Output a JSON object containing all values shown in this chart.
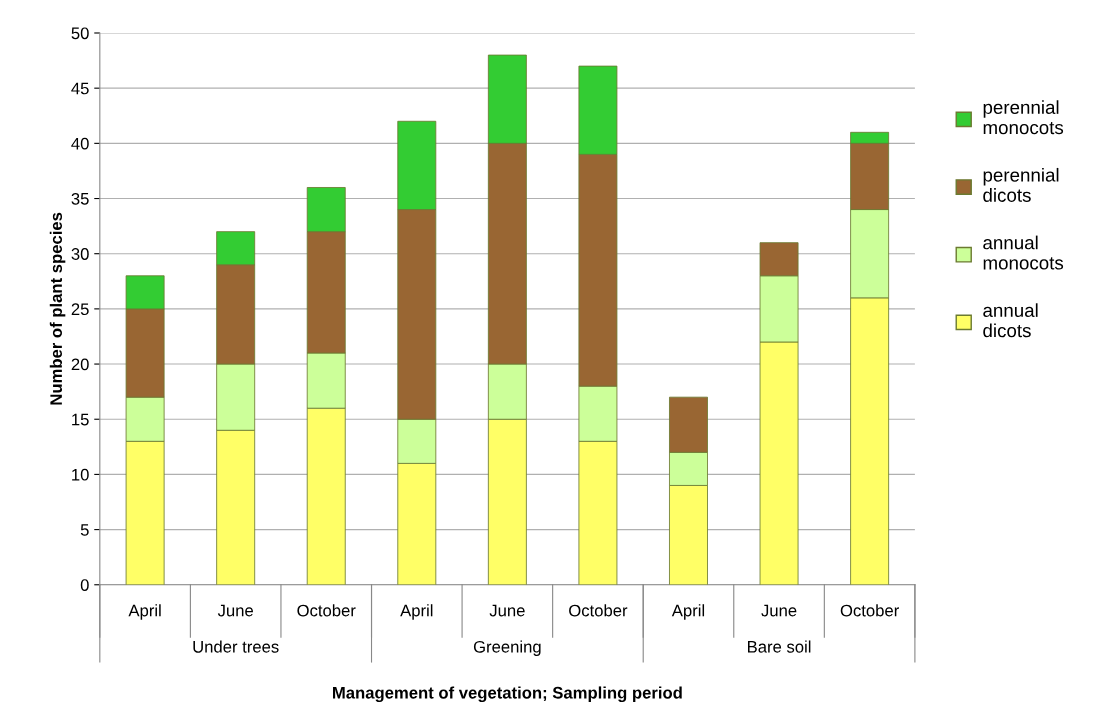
{
  "chart_data": {
    "type": "bar",
    "stacked": true,
    "xlabel": "Management of vegetation; Sampling period",
    "ylabel": "Number of plant species",
    "categories": [
      "April",
      "June",
      "October",
      "April",
      "June",
      "October",
      "April",
      "June",
      "October"
    ],
    "series": [
      {
        "name": "annual dicots",
        "color": "#ffff66",
        "values": [
          13,
          14,
          16,
          11,
          15,
          13,
          9,
          22,
          26
        ]
      },
      {
        "name": "annual monocots",
        "color": "#ccff99",
        "values": [
          4,
          6,
          5,
          4,
          5,
          5,
          3,
          6,
          8
        ]
      },
      {
        "name": "perennial dicots",
        "color": "#996633",
        "values": [
          8,
          9,
          11,
          19,
          20,
          21,
          5,
          3,
          6
        ]
      },
      {
        "name": "perennial monocots",
        "color": "#33cc33",
        "values": [
          3,
          3,
          4,
          8,
          8,
          8,
          null,
          null,
          1
        ]
      }
    ],
    "annotations": [
      "Under trees",
      "Greening",
      "Bare soil"
    ],
    "ylim": [
      0,
      50
    ],
    "yticks": [
      0,
      5,
      10,
      15,
      20,
      25,
      30,
      35,
      40,
      45,
      50
    ],
    "grid": "y",
    "legend": "right"
  }
}
